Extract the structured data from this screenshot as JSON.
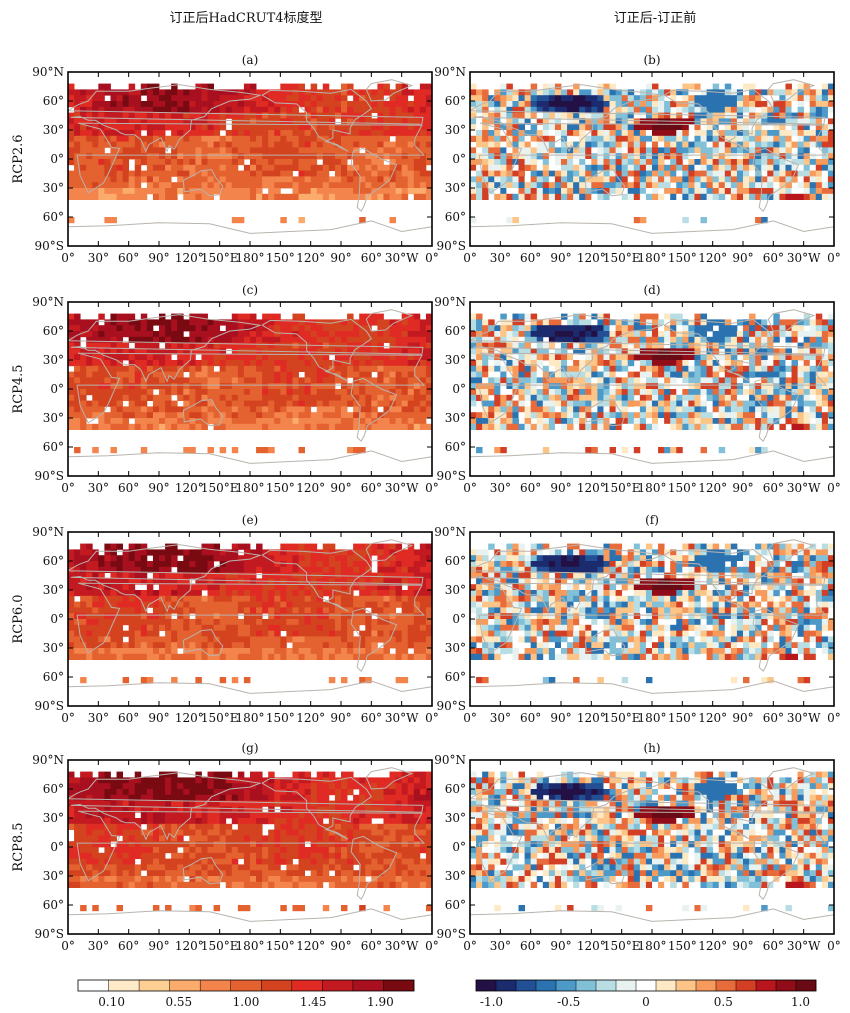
{
  "figure": {
    "column_titles": [
      "订正后HadCRUT4标度型",
      "订正后-订正前"
    ]
  },
  "chart_data": {
    "type": "heatmap",
    "xaxis_ticks": [
      "0°",
      "30°",
      "60°",
      "90°",
      "120°",
      "150°E",
      "180°",
      "150°",
      "120°",
      "90°",
      "60°",
      "30°W",
      "0°"
    ],
    "yaxis_ticks": [
      "90°N",
      "60°",
      "30°",
      "0°",
      "30°",
      "60°",
      "90°S"
    ],
    "xlim": [
      0,
      360
    ],
    "ylim": [
      -90,
      90
    ],
    "rows": [
      {
        "label": "RCP2.6",
        "panels": [
          "(a)",
          "(b)"
        ]
      },
      {
        "label": "RCP4.5",
        "panels": [
          "(c)",
          "(d)"
        ]
      },
      {
        "label": "RCP6.0",
        "panels": [
          "(e)",
          "(f)"
        ]
      },
      {
        "label": "RCP8.5",
        "panels": [
          "(g)",
          "(h)"
        ]
      }
    ],
    "colorbars": [
      {
        "tick_labels": [
          "0.10",
          "0.55",
          "1.00",
          "1.45",
          "1.90"
        ],
        "levels": [
          0.1,
          0.55,
          1.0,
          1.45,
          1.9
        ],
        "range": [
          -0.125,
          2.125
        ],
        "colors": [
          "#ffffff",
          "#fee9c8",
          "#fdcf92",
          "#fbab6c",
          "#f3844c",
          "#e4622f",
          "#d4431f",
          "#e02b24",
          "#c31a21",
          "#a81020",
          "#7a0a12"
        ]
      },
      {
        "tick_labels": [
          "-1.0",
          "-0.5",
          "0",
          "0.5",
          "1.0"
        ],
        "levels": [
          -1.0,
          -0.5,
          0,
          0.5,
          1.0
        ],
        "range": [
          -1.1,
          1.1
        ],
        "colors": [
          "#231145",
          "#1c2a6e",
          "#234f95",
          "#2b73b0",
          "#4d99c8",
          "#82c0d8",
          "#b8dde3",
          "#e8f2f0",
          "#ffffff",
          "#fde9c4",
          "#fdc488",
          "#f69b5b",
          "#e86b3b",
          "#d23f24",
          "#b8161c",
          "#8f0c18",
          "#690a15"
        ]
      }
    ]
  }
}
